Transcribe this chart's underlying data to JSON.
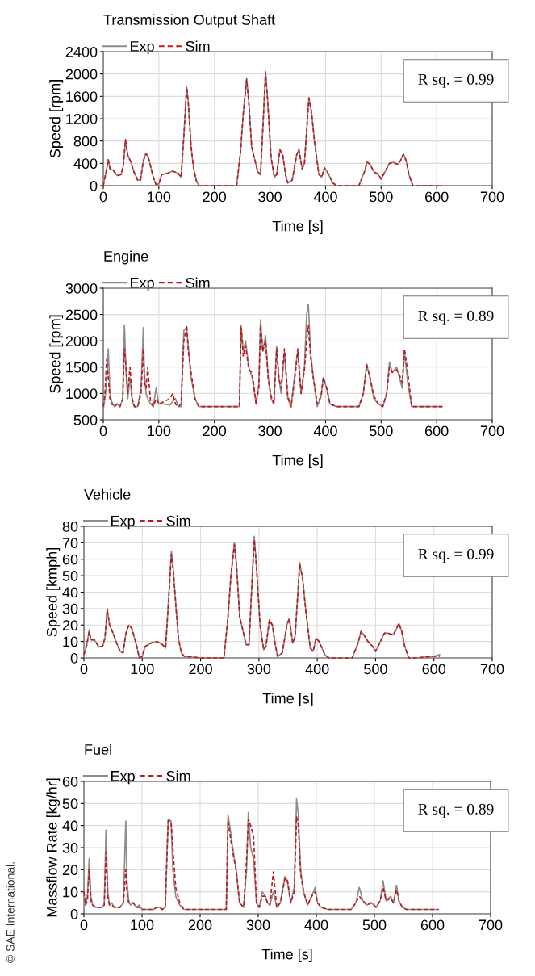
{
  "chart_data": [
    {
      "type": "line",
      "title": "Transmission Output Shaft",
      "xlabel": "Time [s]",
      "ylabel": "Speed [rpm]",
      "x": [
        0,
        5,
        9,
        12,
        18,
        25,
        32,
        36,
        40,
        44,
        50,
        55,
        62,
        67,
        72,
        77,
        82,
        90,
        95,
        100,
        105,
        115,
        125,
        135,
        140,
        145,
        150,
        153,
        158,
        162,
        167,
        172,
        200,
        240,
        247,
        252,
        258,
        262,
        267,
        273,
        278,
        283,
        288,
        292,
        296,
        302,
        308,
        312,
        318,
        323,
        328,
        332,
        340,
        348,
        352,
        358,
        362,
        370,
        375,
        380,
        388,
        393,
        398,
        403,
        408,
        413,
        420,
        450,
        460,
        470,
        475,
        480,
        487,
        495,
        500,
        507,
        515,
        522,
        530,
        535,
        540,
        545,
        550,
        557,
        570,
        600,
        610
      ],
      "series": [
        {
          "name": "Exp",
          "color": "#8c8c8c",
          "line_style": "solid",
          "values": [
            0,
            250,
            470,
            300,
            280,
            180,
            200,
            350,
            830,
            550,
            420,
            250,
            100,
            100,
            450,
            580,
            480,
            150,
            20,
            30,
            200,
            220,
            260,
            220,
            150,
            900,
            1780,
            1500,
            700,
            350,
            100,
            0,
            0,
            0,
            600,
            1300,
            1920,
            1500,
            700,
            450,
            250,
            200,
            1200,
            2050,
            1500,
            500,
            150,
            200,
            650,
            550,
            200,
            50,
            100,
            550,
            650,
            300,
            400,
            1580,
            1300,
            800,
            200,
            150,
            320,
            250,
            150,
            50,
            0,
            0,
            0,
            250,
            420,
            380,
            250,
            200,
            120,
            250,
            400,
            420,
            380,
            450,
            570,
            450,
            200,
            0,
            0,
            0,
            0
          ]
        },
        {
          "name": "Sim",
          "color": "#c0181c",
          "line_style": "dashed",
          "values": [
            0,
            240,
            460,
            310,
            270,
            180,
            200,
            360,
            820,
            540,
            410,
            250,
            100,
            100,
            440,
            580,
            470,
            150,
            20,
            30,
            200,
            220,
            260,
            220,
            150,
            880,
            1760,
            1480,
            700,
            350,
            100,
            0,
            0,
            0,
            600,
            1300,
            1900,
            1480,
            700,
            450,
            250,
            200,
            1200,
            2030,
            1480,
            500,
            150,
            200,
            640,
            550,
            200,
            50,
            100,
            550,
            650,
            300,
            400,
            1570,
            1300,
            800,
            200,
            150,
            320,
            250,
            150,
            50,
            0,
            0,
            0,
            250,
            420,
            380,
            250,
            200,
            120,
            250,
            400,
            420,
            380,
            450,
            560,
            450,
            200,
            0,
            0,
            0,
            0
          ]
        }
      ],
      "xlim": [
        0,
        700
      ],
      "xticks": [
        0,
        100,
        200,
        300,
        400,
        500,
        600,
        700
      ],
      "ylim": [
        0,
        2400
      ],
      "yticks": [
        0,
        400,
        800,
        1200,
        1600,
        2000,
        2400
      ],
      "grid": true,
      "legend": "top left",
      "marker": "none",
      "annotations": [
        "R sq. = 0.99"
      ]
    },
    {
      "type": "line",
      "title": "Engine",
      "xlabel": "Time [s]",
      "ylabel": "Speed [rpm]",
      "x": [
        0,
        3,
        6,
        9,
        12,
        15,
        20,
        25,
        30,
        35,
        38,
        41,
        44,
        48,
        52,
        56,
        62,
        68,
        72,
        74,
        77,
        80,
        85,
        90,
        95,
        100,
        110,
        120,
        125,
        130,
        135,
        140,
        145,
        150,
        153,
        158,
        165,
        172,
        200,
        245,
        248,
        252,
        256,
        262,
        268,
        275,
        280,
        283,
        287,
        292,
        297,
        302,
        307,
        312,
        316,
        320,
        326,
        332,
        338,
        346,
        350,
        356,
        362,
        366,
        369,
        373,
        378,
        385,
        392,
        396,
        402,
        408,
        420,
        460,
        468,
        474,
        480,
        487,
        495,
        503,
        510,
        515,
        520,
        528,
        533,
        538,
        542,
        548,
        555,
        600,
        610
      ],
      "series": [
        {
          "name": "Exp",
          "color": "#8c8c8c",
          "line_style": "solid",
          "values": [
            700,
            900,
            1200,
            1850,
            1000,
            850,
            750,
            800,
            750,
            900,
            2300,
            1400,
            900,
            1300,
            850,
            750,
            750,
            1100,
            2250,
            1400,
            1000,
            900,
            800,
            750,
            1100,
            800,
            800,
            780,
            850,
            900,
            750,
            750,
            2200,
            2250,
            1900,
            1300,
            900,
            750,
            750,
            750,
            2300,
            1800,
            2000,
            1500,
            1300,
            800,
            1200,
            2400,
            1800,
            2100,
            1300,
            900,
            800,
            1900,
            1300,
            1000,
            1800,
            900,
            750,
            1500,
            1800,
            1000,
            1500,
            2500,
            2700,
            1800,
            1300,
            750,
            950,
            1300,
            1100,
            800,
            750,
            750,
            1000,
            1550,
            1300,
            900,
            800,
            750,
            1000,
            1600,
            1400,
            1500,
            1300,
            1100,
            1800,
            1200,
            750,
            750,
            750
          ]
        },
        {
          "name": "Sim",
          "color": "#c0181c",
          "line_style": "dashed",
          "values": [
            750,
            1000,
            1650,
            1300,
            900,
            800,
            750,
            800,
            750,
            900,
            1850,
            1500,
            1000,
            1500,
            900,
            750,
            750,
            1000,
            1850,
            1200,
            1100,
            1500,
            850,
            750,
            900,
            800,
            850,
            900,
            1000,
            800,
            750,
            800,
            2000,
            2300,
            1800,
            1400,
            900,
            750,
            750,
            750,
            2250,
            1700,
            1900,
            1450,
            1400,
            800,
            1100,
            2300,
            1800,
            2000,
            1250,
            950,
            800,
            1850,
            1300,
            1100,
            1850,
            950,
            750,
            1400,
            1850,
            1000,
            1450,
            2000,
            2300,
            1700,
            1300,
            800,
            950,
            1300,
            1100,
            800,
            750,
            750,
            1000,
            1550,
            1300,
            950,
            800,
            750,
            1000,
            1500,
            1400,
            1450,
            1350,
            1200,
            1850,
            1400,
            750,
            750,
            750
          ]
        }
      ],
      "xlim": [
        0,
        700
      ],
      "xticks": [
        0,
        100,
        200,
        300,
        400,
        500,
        600,
        700
      ],
      "ylim": [
        500,
        3000
      ],
      "yticks": [
        500,
        1000,
        1500,
        2000,
        2500,
        3000
      ],
      "grid": true,
      "legend": "top left",
      "marker": "none",
      "annotations": [
        "R sq. = 0.89"
      ]
    },
    {
      "type": "line",
      "title": "Vehicle",
      "xlabel": "Time [s]",
      "ylabel": "Speed [kmph]",
      "x": [
        0,
        5,
        9,
        12,
        18,
        25,
        32,
        36,
        40,
        44,
        50,
        55,
        62,
        67,
        72,
        77,
        82,
        90,
        95,
        100,
        105,
        115,
        125,
        135,
        140,
        145,
        150,
        153,
        158,
        162,
        167,
        172,
        200,
        240,
        247,
        252,
        258,
        262,
        267,
        273,
        278,
        283,
        288,
        292,
        296,
        302,
        308,
        312,
        318,
        323,
        328,
        332,
        340,
        348,
        352,
        358,
        362,
        370,
        375,
        380,
        388,
        393,
        398,
        403,
        408,
        413,
        420,
        450,
        460,
        470,
        475,
        480,
        487,
        495,
        500,
        507,
        515,
        522,
        530,
        535,
        540,
        545,
        550,
        557,
        570,
        600,
        610
      ],
      "series": [
        {
          "name": "Exp",
          "color": "#8c8c8c",
          "line_style": "solid",
          "values": [
            2,
            8,
            17,
            11,
            11,
            7,
            7,
            12,
            30,
            20,
            15,
            10,
            4,
            3,
            15,
            20,
            18,
            8,
            0,
            1,
            7,
            9,
            10,
            8,
            6,
            35,
            65,
            55,
            30,
            12,
            3,
            1,
            0,
            0,
            25,
            50,
            70,
            55,
            25,
            16,
            8,
            8,
            45,
            74,
            55,
            20,
            5,
            7,
            23,
            20,
            8,
            1,
            3,
            20,
            24,
            9,
            13,
            58,
            48,
            30,
            6,
            4,
            12,
            10,
            6,
            2,
            0,
            0,
            0,
            9,
            16,
            14,
            10,
            7,
            4,
            9,
            15,
            15,
            14,
            17,
            21,
            16,
            7,
            0,
            0,
            1,
            2
          ]
        },
        {
          "name": "Sim",
          "color": "#c0181c",
          "line_style": "dashed",
          "values": [
            2,
            8,
            16,
            11,
            11,
            7,
            7,
            12,
            29,
            20,
            15,
            10,
            4,
            3,
            15,
            20,
            18,
            8,
            0,
            1,
            7,
            9,
            10,
            8,
            6,
            34,
            63,
            54,
            30,
            12,
            3,
            1,
            0,
            0,
            25,
            50,
            69,
            54,
            25,
            16,
            8,
            8,
            45,
            72,
            54,
            20,
            5,
            7,
            23,
            20,
            8,
            1,
            3,
            20,
            24,
            9,
            13,
            57,
            48,
            30,
            6,
            4,
            12,
            10,
            6,
            2,
            0,
            0,
            0,
            9,
            16,
            14,
            10,
            7,
            4,
            9,
            15,
            15,
            14,
            17,
            21,
            16,
            7,
            0,
            0,
            1,
            1
          ]
        }
      ],
      "xlim": [
        0,
        700
      ],
      "xticks": [
        0,
        100,
        200,
        300,
        400,
        500,
        600,
        700
      ],
      "ylim": [
        0,
        80
      ],
      "yticks": [
        0,
        10,
        20,
        30,
        40,
        50,
        60,
        70,
        80
      ],
      "grid": true,
      "legend": "top left",
      "marker": "none",
      "annotations": [
        "R sq. = 0.99"
      ]
    },
    {
      "type": "line",
      "title": "Fuel",
      "xlabel": "Time [s]",
      "ylabel": "Massflow Rate [kg/hr]",
      "x": [
        0,
        3,
        6,
        9,
        12,
        15,
        20,
        25,
        30,
        35,
        38,
        41,
        44,
        48,
        52,
        56,
        62,
        68,
        72,
        74,
        77,
        80,
        85,
        90,
        95,
        100,
        110,
        120,
        125,
        130,
        135,
        140,
        145,
        150,
        153,
        158,
        165,
        172,
        200,
        245,
        248,
        252,
        256,
        262,
        268,
        275,
        280,
        283,
        287,
        292,
        297,
        302,
        307,
        312,
        316,
        320,
        326,
        332,
        338,
        346,
        350,
        356,
        362,
        366,
        369,
        373,
        378,
        385,
        392,
        398,
        402,
        408,
        420,
        460,
        468,
        474,
        480,
        487,
        495,
        503,
        510,
        515,
        520,
        528,
        533,
        538,
        542,
        548,
        555,
        600,
        610
      ],
      "series": [
        {
          "name": "Exp",
          "color": "#8c8c8c",
          "line_style": "solid",
          "values": [
            9,
            4,
            8,
            25,
            8,
            4,
            3,
            3,
            3,
            4,
            38,
            10,
            4,
            5,
            3,
            3,
            3,
            5,
            42,
            15,
            6,
            4,
            5,
            3,
            4,
            2,
            2,
            2,
            3,
            3,
            2,
            3,
            43,
            42,
            20,
            8,
            4,
            2,
            2,
            2,
            45,
            38,
            30,
            20,
            5,
            3,
            20,
            46,
            30,
            25,
            5,
            3,
            10,
            8,
            5,
            4,
            10,
            3,
            5,
            17,
            15,
            5,
            12,
            52,
            45,
            20,
            10,
            4,
            8,
            12,
            5,
            3,
            2,
            2,
            5,
            12,
            6,
            4,
            5,
            3,
            6,
            15,
            6,
            8,
            5,
            13,
            6,
            3,
            2,
            2,
            2
          ]
        },
        {
          "name": "Sim",
          "color": "#c0181c",
          "line_style": "dashed",
          "values": [
            10,
            4,
            6,
            20,
            6,
            4,
            3,
            3,
            3,
            4,
            28,
            8,
            4,
            4,
            3,
            3,
            3,
            5,
            20,
            10,
            5,
            5,
            5,
            3,
            3,
            2,
            2,
            2,
            3,
            3,
            2,
            3,
            42,
            42,
            30,
            12,
            5,
            2,
            2,
            2,
            42,
            35,
            28,
            20,
            5,
            3,
            25,
            43,
            40,
            35,
            5,
            3,
            8,
            8,
            5,
            4,
            19,
            3,
            5,
            16,
            16,
            5,
            10,
            44,
            40,
            18,
            10,
            4,
            8,
            10,
            5,
            3,
            2,
            2,
            5,
            8,
            6,
            4,
            5,
            3,
            6,
            12,
            6,
            7,
            5,
            11,
            6,
            3,
            2,
            2,
            2
          ]
        }
      ],
      "xlim": [
        0,
        700
      ],
      "xticks": [
        0,
        100,
        200,
        300,
        400,
        500,
        600,
        700
      ],
      "ylim": [
        0,
        60
      ],
      "yticks": [
        0,
        10,
        20,
        30,
        40,
        50,
        60
      ],
      "grid": true,
      "legend": "top left",
      "marker": "none",
      "annotations": [
        "R sq. = 0.89",
        "© SAE International."
      ]
    }
  ]
}
